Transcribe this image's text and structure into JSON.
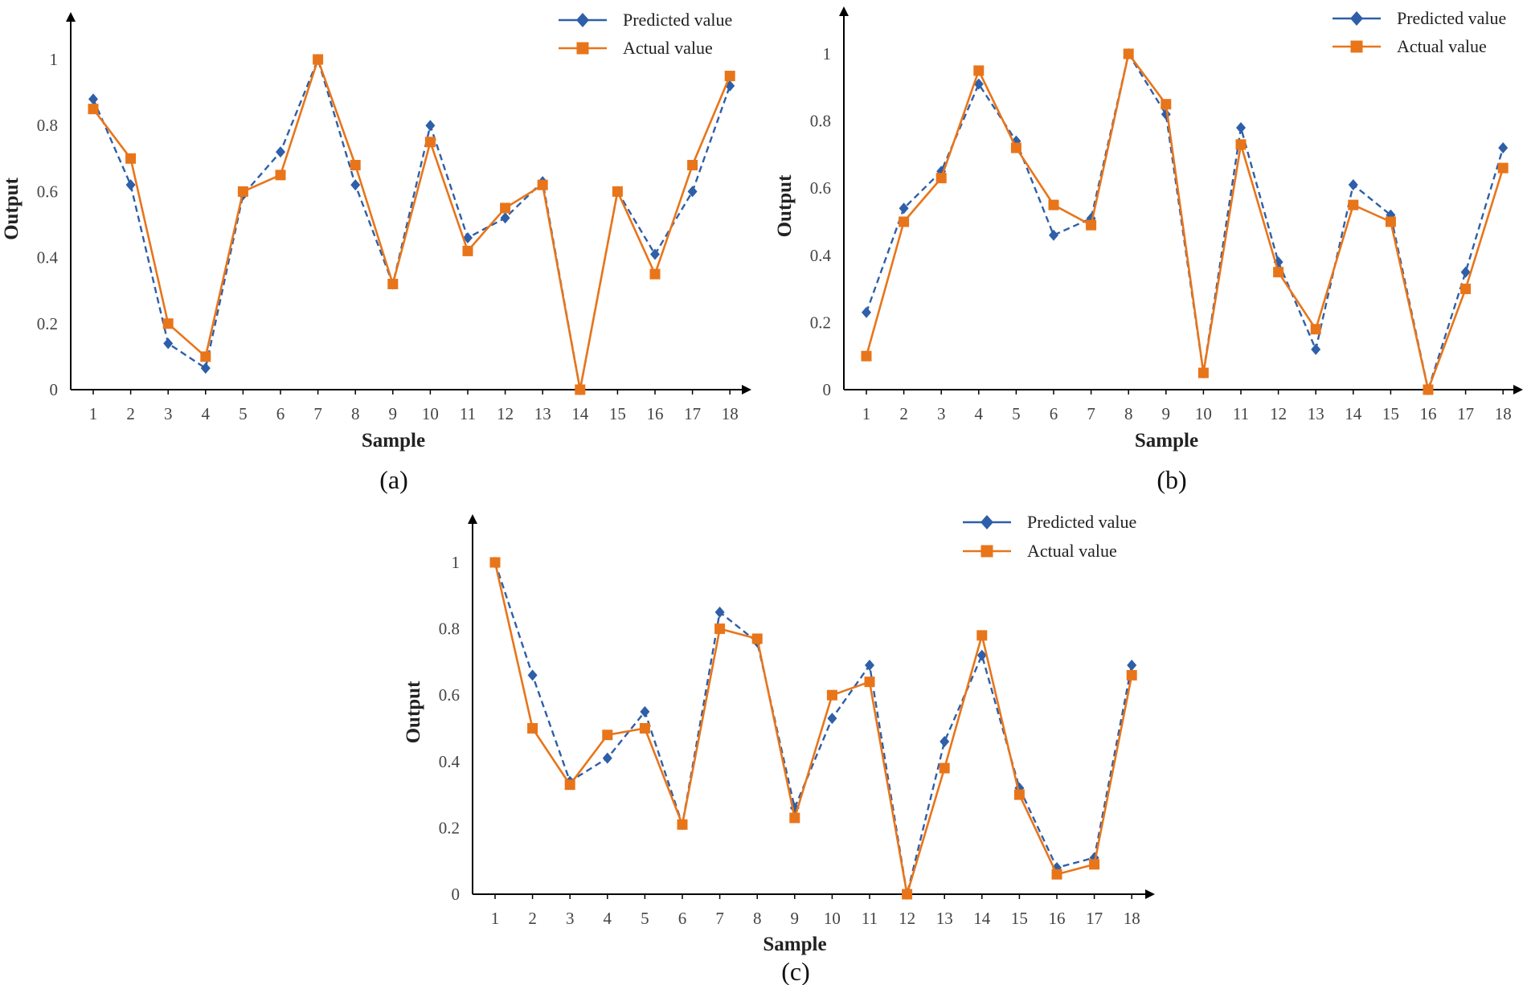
{
  "series_styles": {
    "predicted": {
      "color": "#2e5fa8",
      "marker": "diamond",
      "line": "dashed"
    },
    "actual": {
      "color": "#e8751a",
      "marker": "square",
      "line": "solid"
    }
  },
  "chart_data": [
    {
      "type": "line",
      "caption": "(a)",
      "xlabel": "Sample",
      "ylabel": "Output",
      "categories": [
        "1",
        "2",
        "3",
        "4",
        "5",
        "6",
        "7",
        "8",
        "9",
        "10",
        "11",
        "12",
        "13",
        "14",
        "15",
        "16",
        "17",
        "18"
      ],
      "yticks": [
        "0",
        "0.2",
        "0.4",
        "0.6",
        "0.8",
        "1"
      ],
      "ylim": [
        0,
        1.1
      ],
      "legend": "top-right",
      "grid": false,
      "series": [
        {
          "name": "Predicted value",
          "values": [
            0.88,
            0.62,
            0.14,
            0.065,
            0.59,
            0.72,
            1.0,
            0.62,
            0.32,
            0.8,
            0.46,
            0.52,
            0.63,
            0.0,
            0.6,
            0.41,
            0.6,
            0.92
          ]
        },
        {
          "name": "Actual value",
          "values": [
            0.85,
            0.7,
            0.2,
            0.1,
            0.6,
            0.65,
            1.0,
            0.68,
            0.32,
            0.75,
            0.42,
            0.55,
            0.62,
            0.0,
            0.6,
            0.35,
            0.68,
            0.95
          ]
        }
      ]
    },
    {
      "type": "line",
      "caption": "(b)",
      "xlabel": "Sample",
      "ylabel": "Output",
      "categories": [
        "1",
        "2",
        "3",
        "4",
        "5",
        "6",
        "7",
        "8",
        "9",
        "10",
        "11",
        "12",
        "13",
        "14",
        "15",
        "16",
        "17",
        "18"
      ],
      "yticks": [
        "0",
        "0.2",
        "0.4",
        "0.6",
        "0.8",
        "1"
      ],
      "ylim": [
        0,
        1.1
      ],
      "legend": "top-right",
      "grid": false,
      "series": [
        {
          "name": "Predicted value",
          "values": [
            0.23,
            0.54,
            0.65,
            0.91,
            0.74,
            0.46,
            0.51,
            1.0,
            0.82,
            0.05,
            0.78,
            0.38,
            0.12,
            0.61,
            0.52,
            0.0,
            0.35,
            0.72
          ]
        },
        {
          "name": "Actual value",
          "values": [
            0.1,
            0.5,
            0.63,
            0.95,
            0.72,
            0.55,
            0.49,
            1.0,
            0.85,
            0.05,
            0.73,
            0.35,
            0.18,
            0.55,
            0.5,
            0.0,
            0.3,
            0.66
          ]
        }
      ]
    },
    {
      "type": "line",
      "caption": "(c)",
      "xlabel": "Sample",
      "ylabel": "Output",
      "categories": [
        "1",
        "2",
        "3",
        "4",
        "5",
        "6",
        "7",
        "8",
        "9",
        "10",
        "11",
        "12",
        "13",
        "14",
        "15",
        "16",
        "17",
        "18"
      ],
      "yticks": [
        "0",
        "0.2",
        "0.4",
        "0.6",
        "0.8",
        "1"
      ],
      "ylim": [
        0,
        1.1
      ],
      "legend": "top-right",
      "grid": false,
      "series": [
        {
          "name": "Predicted value",
          "values": [
            1.0,
            0.66,
            0.34,
            0.41,
            0.55,
            0.21,
            0.85,
            0.76,
            0.26,
            0.53,
            0.69,
            0.0,
            0.46,
            0.72,
            0.32,
            0.08,
            0.11,
            0.69
          ]
        },
        {
          "name": "Actual value",
          "values": [
            1.0,
            0.5,
            0.33,
            0.48,
            0.5,
            0.21,
            0.8,
            0.77,
            0.23,
            0.6,
            0.64,
            0.0,
            0.38,
            0.78,
            0.3,
            0.06,
            0.09,
            0.66
          ]
        }
      ]
    }
  ]
}
